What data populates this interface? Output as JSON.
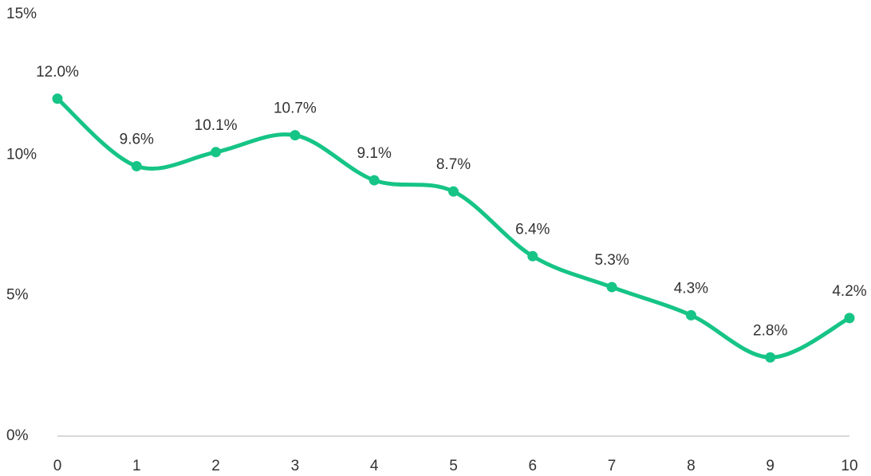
{
  "chart_data": {
    "type": "line",
    "x": [
      0,
      1,
      2,
      3,
      4,
      5,
      6,
      7,
      8,
      9,
      10
    ],
    "values": [
      12.0,
      9.6,
      10.1,
      10.7,
      9.1,
      8.7,
      6.4,
      5.3,
      4.3,
      2.8,
      4.2
    ],
    "value_labels": [
      "12.0%",
      "9.6%",
      "10.1%",
      "10.7%",
      "9.1%",
      "8.7%",
      "6.4%",
      "5.3%",
      "4.3%",
      "2.8%",
      "4.2%"
    ],
    "color": "#16c486",
    "xlim": [
      0,
      10
    ],
    "xticks": [
      0,
      1,
      2,
      3,
      4,
      5,
      6,
      7,
      8,
      9,
      10
    ],
    "ylim": [
      0,
      15
    ],
    "yticks": [
      {
        "value": 0,
        "label": "0%"
      },
      {
        "value": 5,
        "label": "5%"
      },
      {
        "value": 10,
        "label": "10%"
      },
      {
        "value": 15,
        "label": "15%"
      }
    ],
    "grid": false,
    "smooth": true
  }
}
